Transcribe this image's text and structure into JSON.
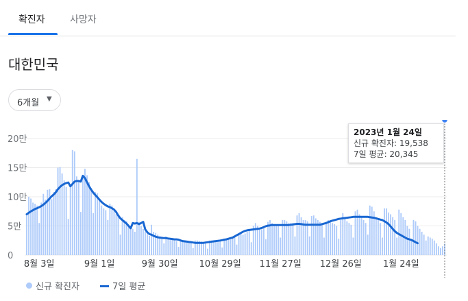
{
  "tabs": [
    {
      "label": "확진자",
      "active": true
    },
    {
      "label": "사망자",
      "active": false
    }
  ],
  "region": {
    "title": "대한민국"
  },
  "period_dropdown": {
    "selected": "6개월"
  },
  "tooltip": {
    "date": "2023년 1월 24일",
    "cases_label": "신규 확진자: 19,538",
    "avg_label": "7일 평균: 20,345"
  },
  "legend": {
    "bars": "신규 확진자",
    "line": "7일 평균"
  },
  "colors": {
    "accent": "#1a73e8",
    "bars": "#aecbfa",
    "line": "#1967d2"
  },
  "chart_data": {
    "type": "bar",
    "y_tick_labels": [
      "0",
      "5만",
      "10만",
      "15만",
      "20만"
    ],
    "y_ticks": [
      0,
      50000,
      100000,
      150000,
      200000
    ],
    "ylim": [
      0,
      200000
    ],
    "x_tick_labels": [
      "8월 3일",
      "9월 1일",
      "9월 30일",
      "10월 29일",
      "11월 27일",
      "12월 26일",
      "1월 24일"
    ],
    "x_tick_days": [
      6,
      35,
      64,
      93,
      122,
      151,
      180
    ],
    "grid": true,
    "legend_position": "bottom-left",
    "series": [
      {
        "name": "신규 확진자",
        "type": "bar",
        "values": [
          70000,
          100000,
          97000,
          90000,
          88000,
          85000,
          55000,
          90000,
          105000,
          95000,
          112000,
          113000,
          96000,
          108000,
          113000,
          150000,
          151000,
          140000,
          128000,
          117000,
          62000,
          120000,
          180000,
          178000,
          135000,
          128000,
          74000,
          134000,
          148000,
          137000,
          125000,
          115000,
          72000,
          108000,
          106000,
          97000,
          85000,
          80000,
          77000,
          60000,
          88000,
          85000,
          75000,
          70000,
          67000,
          35000,
          65000,
          60000,
          58000,
          50000,
          50000,
          45000,
          40000,
          165000,
          57000,
          50000,
          45000,
          40000,
          36000,
          33000,
          52000,
          40000,
          38000,
          35000,
          32000,
          30000,
          20000,
          32000,
          30000,
          28000,
          26000,
          25000,
          24000,
          14000,
          27000,
          25000,
          24000,
          23000,
          22000,
          21000,
          12000,
          25000,
          25000,
          24000,
          23000,
          22000,
          21000,
          11000,
          25000,
          25000,
          24000,
          23000,
          24000,
          25000,
          13000,
          28000,
          28000,
          27000,
          27000,
          30000,
          31000,
          18000,
          35000,
          36000,
          35000,
          37000,
          40000,
          43000,
          22000,
          50000,
          55000,
          50000,
          45000,
          44000,
          46000,
          27000,
          57000,
          60000,
          55000,
          52000,
          52000,
          50000,
          30000,
          60000,
          60000,
          58000,
          55000,
          55000,
          55000,
          32000,
          68000,
          72000,
          65000,
          60000,
          60000,
          58000,
          32000,
          67000,
          68000,
          63000,
          60000,
          57000,
          55000,
          30000,
          57000,
          60000,
          58000,
          55000,
          53000,
          50000,
          28000,
          60000,
          72000,
          65000,
          58000,
          55000,
          52000,
          30000,
          75000,
          78000,
          70000,
          65000,
          60000,
          55000,
          35000,
          85000,
          83000,
          75000,
          65000,
          60000,
          55000,
          30000,
          80000,
          80000,
          73000,
          70000,
          65000,
          60000,
          30000,
          78000,
          72000,
          65000,
          60000,
          50000,
          45000,
          25000,
          60000,
          58000,
          50000,
          45000,
          40000,
          35000,
          25000,
          32000,
          30000,
          28000,
          25000,
          20000,
          15000,
          12000,
          15000,
          19538
        ]
      },
      {
        "name": "7일 평균",
        "type": "line",
        "values": [
          70000,
          72500,
          75000,
          77000,
          79000,
          80500,
          82000,
          84000,
          86500,
          89500,
          93000,
          97000,
          101000,
          104000,
          108000,
          113000,
          117000,
          120000,
          122000,
          123500,
          124500,
          118000,
          122000,
          126000,
          127000,
          127000,
          126000,
          136000,
          132000,
          125000,
          118000,
          112000,
          107000,
          103000,
          99000,
          95000,
          91000,
          88000,
          85500,
          83500,
          82000,
          80500,
          78000,
          74000,
          68000,
          63000,
          60000,
          57000,
          54000,
          50000,
          46000,
          55000,
          54000,
          55000,
          53000,
          55000,
          57000,
          44000,
          39000,
          36000,
          35000,
          33000,
          31500,
          30500,
          30000,
          29500,
          29000,
          29000,
          28500,
          28000,
          27500,
          27000,
          27000,
          26500,
          25000,
          24000,
          23500,
          23000,
          22500,
          22000,
          21500,
          21000,
          21000,
          21000,
          21000,
          21000,
          21500,
          22000,
          22500,
          23000,
          23500,
          24000,
          24500,
          25000,
          25500,
          26500,
          27000,
          28000,
          29000,
          30000,
          32000,
          34000,
          36000,
          38000,
          40000,
          41500,
          42500,
          43000,
          43500,
          44000,
          44500,
          45000,
          45500,
          46500,
          48000,
          49500,
          50500,
          51000,
          51500,
          51500,
          51500,
          51500,
          51500,
          51500,
          51500,
          51500,
          51500,
          52000,
          52500,
          53000,
          53500,
          53500,
          53000,
          52500,
          52000,
          52000,
          52000,
          52000,
          52000,
          52000,
          52000,
          52000,
          53000,
          54000,
          55000,
          56500,
          58000,
          59000,
          60000,
          61000,
          62000,
          62500,
          63000,
          63500,
          64000,
          64500,
          65000,
          65500,
          65500,
          65500,
          65500,
          65500,
          65500,
          65500,
          65500,
          65000,
          64500,
          64000,
          63000,
          62000,
          61000,
          60000,
          58000,
          56000,
          53000,
          49000,
          45000,
          41000,
          38000,
          36000,
          34000,
          32000,
          30000,
          28000,
          27000,
          26000,
          24000,
          22000,
          20345
        ]
      }
    ]
  }
}
